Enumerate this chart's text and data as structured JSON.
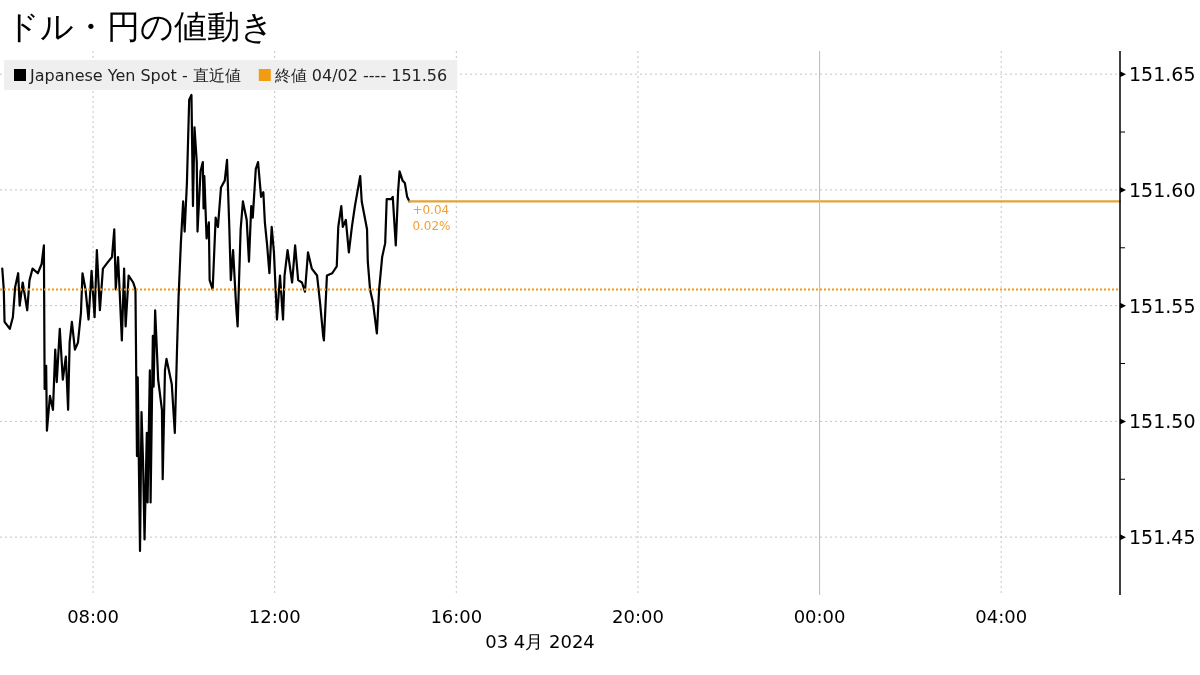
{
  "chart_data": {
    "type": "line",
    "title": "ドル・円の値動き",
    "xlabel": "03 4月 2024",
    "xlim": [
      "2024-04-03T05:57",
      "2024-04-04T06:37"
    ],
    "xticks": [
      {
        "value": "2024-04-03T08:00",
        "label": "08:00"
      },
      {
        "value": "2024-04-03T12:00",
        "label": "12:00"
      },
      {
        "value": "2024-04-03T16:00",
        "label": "16:00"
      },
      {
        "value": "2024-04-03T20:00",
        "label": "20:00"
      },
      {
        "value": "2024-04-04T00:00",
        "label": "00:00"
      },
      {
        "value": "2024-04-04T04:00",
        "label": "04:00"
      }
    ],
    "ylim": [
      151.425,
      151.66
    ],
    "yticks": [
      151.45,
      {
        "value": 151.475,
        "label": null
      },
      {
        "value": 151.5,
        "label": "151.50"
      },
      {
        "value": 151.525,
        "label": null
      },
      151.55,
      {
        "value": 151.575,
        "label": null
      },
      {
        "value": 151.6,
        "label": "151.60"
      },
      {
        "value": 151.625,
        "label": null
      },
      151.65
    ],
    "grid": true,
    "legend": "top left",
    "series": [
      {
        "name": "Japanese Yen Spot - 直近値",
        "color": "#000000",
        "x": [
          "2024-04-03T06:00",
          "2024-04-03T06:02",
          "2024-04-03T06:03",
          "2024-04-03T06:10",
          "2024-04-03T06:14",
          "2024-04-03T06:17",
          "2024-04-03T06:21",
          "2024-04-03T06:23",
          "2024-04-03T06:27",
          "2024-04-03T06:33",
          "2024-04-03T06:36",
          "2024-04-03T06:40",
          "2024-04-03T06:47",
          "2024-04-03T06:52",
          "2024-04-03T06:55",
          "2024-04-03T06:56",
          "2024-04-03T06:58",
          "2024-04-03T06:59",
          "2024-04-03T07:03",
          "2024-04-03T07:07",
          "2024-04-03T07:10",
          "2024-04-03T07:12",
          "2024-04-03T07:16",
          "2024-04-03T07:20",
          "2024-04-03T07:24",
          "2024-04-03T07:27",
          "2024-04-03T07:29",
          "2024-04-03T07:32",
          "2024-04-03T07:36",
          "2024-04-03T07:40",
          "2024-04-03T07:44",
          "2024-04-03T07:46",
          "2024-04-03T07:50",
          "2024-04-03T07:54",
          "2024-04-03T07:58",
          "2024-04-03T08:02",
          "2024-04-03T08:05",
          "2024-04-03T08:09",
          "2024-04-03T08:13",
          "2024-04-03T08:20",
          "2024-04-03T08:25",
          "2024-04-03T08:28",
          "2024-04-03T08:30",
          "2024-04-03T08:33",
          "2024-04-03T08:35",
          "2024-04-03T08:38",
          "2024-04-03T08:41",
          "2024-04-03T08:43",
          "2024-04-03T08:47",
          "2024-04-03T08:53",
          "2024-04-03T08:56",
          "2024-04-03T08:58",
          "2024-04-03T08:59",
          "2024-04-03T09:02",
          "2024-04-03T09:04",
          "2024-04-03T09:06",
          "2024-04-03T09:08",
          "2024-04-03T09:11",
          "2024-04-03T09:12",
          "2024-04-03T09:15",
          "2024-04-03T09:16",
          "2024-04-03T09:19",
          "2024-04-03T09:20",
          "2024-04-03T09:22",
          "2024-04-03T09:26",
          "2024-04-03T09:31",
          "2024-04-03T09:32",
          "2024-04-03T09:35",
          "2024-04-03T09:37",
          "2024-04-03T09:44",
          "2024-04-03T09:48",
          "2024-04-03T09:51",
          "2024-04-03T09:53",
          "2024-04-03T09:56",
          "2024-04-03T09:59",
          "2024-04-03T10:01",
          "2024-04-03T10:04",
          "2024-04-03T10:07",
          "2024-04-03T10:10",
          "2024-04-03T10:12",
          "2024-04-03T10:14",
          "2024-04-03T10:17",
          "2024-04-03T10:18",
          "2024-04-03T10:22",
          "2024-04-03T10:25",
          "2024-04-03T10:26",
          "2024-04-03T10:27",
          "2024-04-03T10:30",
          "2024-04-03T10:33",
          "2024-04-03T10:34",
          "2024-04-03T10:38",
          "2024-04-03T10:42",
          "2024-04-03T10:45",
          "2024-04-03T10:49",
          "2024-04-03T10:54",
          "2024-04-03T10:57",
          "2024-04-03T11:00",
          "2024-04-03T11:02",
          "2024-04-03T11:05",
          "2024-04-03T11:09",
          "2024-04-03T11:11",
          "2024-04-03T11:15",
          "2024-04-03T11:18",
          "2024-04-03T11:23",
          "2024-04-03T11:26",
          "2024-04-03T11:29",
          "2024-04-03T11:31",
          "2024-04-03T11:35",
          "2024-04-03T11:38",
          "2024-04-03T11:42",
          "2024-04-03T11:45",
          "2024-04-03T11:47",
          "2024-04-03T11:50",
          "2024-04-03T11:53",
          "2024-04-03T11:56",
          "2024-04-03T11:59",
          "2024-04-03T12:03",
          "2024-04-03T12:07",
          "2024-04-03T12:11",
          "2024-04-03T12:13",
          "2024-04-03T12:17",
          "2024-04-03T12:23",
          "2024-04-03T12:27",
          "2024-04-03T12:31",
          "2024-04-03T12:36",
          "2024-04-03T12:40",
          "2024-04-03T12:44",
          "2024-04-03T12:49",
          "2024-04-03T12:56",
          "2024-04-03T13:00",
          "2024-04-03T13:04",
          "2024-04-03T13:05",
          "2024-04-03T13:09",
          "2024-04-03T13:16",
          "2024-04-03T13:22",
          "2024-04-03T13:24",
          "2024-04-03T13:28",
          "2024-04-03T13:30",
          "2024-04-03T13:34",
          "2024-04-03T13:38",
          "2024-04-03T13:42",
          "2024-04-03T13:46",
          "2024-04-03T13:53",
          "2024-04-03T13:55",
          "2024-04-03T14:02",
          "2024-04-03T14:03",
          "2024-04-03T14:06",
          "2024-04-03T14:10",
          "2024-04-03T14:15",
          "2024-04-03T14:18",
          "2024-04-03T14:22",
          "2024-04-03T14:26",
          "2024-04-03T14:28",
          "2024-04-03T14:34",
          "2024-04-03T14:36",
          "2024-04-03T14:40",
          "2024-04-03T14:43",
          "2024-04-03T14:45",
          "2024-04-03T14:49",
          "2024-04-03T14:52",
          "2024-04-03T14:55",
          "2024-04-03T14:58"
        ],
        "values": [
          151.566,
          151.557,
          151.543,
          151.54,
          151.545,
          151.558,
          151.564,
          151.55,
          151.56,
          151.548,
          151.561,
          151.566,
          151.564,
          151.568,
          151.576,
          151.514,
          151.524,
          151.496,
          151.511,
          151.505,
          151.531,
          151.517,
          151.54,
          151.518,
          151.528,
          151.505,
          151.534,
          151.543,
          151.531,
          151.534,
          151.547,
          151.564,
          151.557,
          151.544,
          151.565,
          151.545,
          151.574,
          151.548,
          151.566,
          151.569,
          151.571,
          151.583,
          151.557,
          151.571,
          151.557,
          151.535,
          151.566,
          151.541,
          151.563,
          151.56,
          151.557,
          151.485,
          151.519,
          151.444,
          151.504,
          151.483,
          151.449,
          151.495,
          151.465,
          151.522,
          151.465,
          151.537,
          151.515,
          151.548,
          151.518,
          151.505,
          151.475,
          151.522,
          151.527,
          151.516,
          151.495,
          151.532,
          151.554,
          151.577,
          151.595,
          151.582,
          151.603,
          151.639,
          151.641,
          151.593,
          151.627,
          151.612,
          151.582,
          151.608,
          151.612,
          151.592,
          151.606,
          151.579,
          151.586,
          151.561,
          151.557,
          151.588,
          151.584,
          151.601,
          151.604,
          151.613,
          151.584,
          151.561,
          151.574,
          151.55,
          151.541,
          151.583,
          151.595,
          151.587,
          151.569,
          151.593,
          151.588,
          151.609,
          151.612,
          151.597,
          151.599,
          151.586,
          151.576,
          151.564,
          151.584,
          151.573,
          151.544,
          151.563,
          151.544,
          151.563,
          151.574,
          151.56,
          151.576,
          151.561,
          151.56,
          151.556,
          151.573,
          151.566,
          151.563,
          151.551,
          151.537,
          151.535,
          151.563,
          151.564,
          151.567,
          151.584,
          151.593,
          151.584,
          151.587,
          151.573,
          151.584,
          151.593,
          151.606,
          151.595,
          151.583,
          151.569,
          151.557,
          151.551,
          151.538,
          151.557,
          151.571,
          151.577,
          151.596,
          151.596,
          151.597,
          151.576,
          151.599,
          151.608,
          151.604,
          151.603,
          151.597,
          151.595
        ]
      },
      {
        "color": "#e3a33a",
        "x": [
          "2024-04-03T14:58",
          "2024-04-04T06:37"
        ],
        "values": [
          151.595,
          151.595
        ]
      }
    ],
    "ref_lines": [
      {
        "axis": "y",
        "value": 151.557,
        "label": "終値 04/02 ---- 151.56",
        "color": "#f39c12",
        "line_style": "dotted"
      },
      {
        "axis": "x",
        "value": "2024-04-04T00:00",
        "color": "#bdbdbd",
        "line_style": "solid"
      }
    ],
    "annotations": [
      "+0.04",
      "0.02%"
    ]
  }
}
